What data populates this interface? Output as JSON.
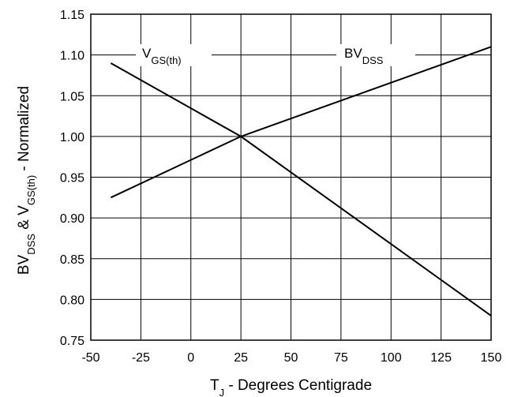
{
  "chart_data": {
    "type": "line",
    "xlabel": "T_J - Degrees Centigrade",
    "xlabel_main": "T",
    "xlabel_sub": "J",
    "xlabel_rest": " - Degrees Centigrade",
    "ylabel": "BV_DSS & V_GS(th) - Normalized",
    "ylabel_parts": {
      "bv": "BV",
      "dss": "DSS",
      "amp_v": " & V",
      "gsth": "GS(th)",
      "rest": " - Normalized"
    },
    "xlim": [
      -50,
      150
    ],
    "ylim": [
      0.75,
      1.15
    ],
    "grid": true,
    "xticks": [
      -50,
      -25,
      0,
      25,
      50,
      75,
      100,
      125,
      150
    ],
    "xtick_labels": [
      "-50",
      "-25",
      "0",
      "25",
      "50",
      "75",
      "100",
      "125",
      "150"
    ],
    "yticks": [
      0.75,
      0.8,
      0.85,
      0.9,
      0.95,
      1.0,
      1.05,
      1.1,
      1.15
    ],
    "ytick_labels": [
      "0.75",
      "0.80",
      "0.85",
      "0.90",
      "0.95",
      "1.00",
      "1.05",
      "1.10",
      "1.15"
    ],
    "series": [
      {
        "key": "vgs",
        "name": "V_GS(th)",
        "label_main": "V",
        "label_sub": "GS(th)",
        "x": [
          -40,
          25,
          150
        ],
        "y": [
          1.09,
          1.0,
          0.78
        ]
      },
      {
        "key": "bvdss",
        "name": "BV_DSS",
        "label_main": "BV",
        "label_sub": "DSS",
        "x": [
          -40,
          25,
          150
        ],
        "y": [
          0.925,
          1.0,
          1.11
        ]
      }
    ]
  }
}
